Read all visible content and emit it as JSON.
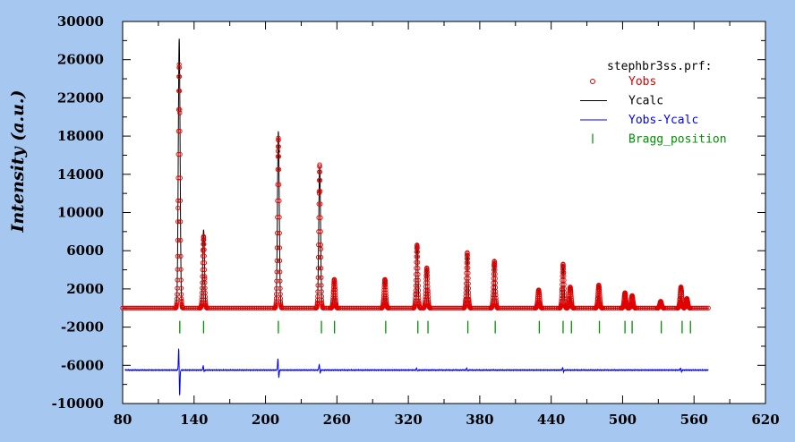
{
  "chart_data": {
    "type": "scatter",
    "ylabel": "Intensity (a.u.)",
    "xlabel": "",
    "xlim": [
      80,
      620
    ],
    "ylim": [
      -10000,
      30000
    ],
    "x_ticks": [
      "80",
      "140",
      "200",
      "260",
      "320",
      "380",
      "440",
      "500",
      "560",
      "620"
    ],
    "y_ticks": [
      "30000",
      "26000",
      "22000",
      "18000",
      "14000",
      "10000",
      "6000",
      "2000",
      "-2000",
      "-6000",
      "-10000"
    ],
    "legend": {
      "title": "stephbr3ss.prf:",
      "placement": "top-right",
      "entries": [
        {
          "label": "Yobs",
          "marker": "circle",
          "color": "#e00000"
        },
        {
          "label": "Ycalc",
          "marker": "line",
          "color": "#000000"
        },
        {
          "label": "Yobs-Ycalc",
          "marker": "line",
          "color": "#0000ff"
        },
        {
          "label": "Bragg_position",
          "marker": "tick",
          "color": "#009000"
        }
      ]
    },
    "background": 0,
    "x_range_data": [
      80,
      572
    ],
    "peaks": [
      {
        "x": 127.5,
        "y_obs": 25500,
        "y_calc": 28200
      },
      {
        "x": 148,
        "y_obs": 7500,
        "y_calc": 8200
      },
      {
        "x": 210.8,
        "y_obs": 17800,
        "y_calc": 18500
      },
      {
        "x": 245.5,
        "y_obs": 15000,
        "y_calc": 14800
      },
      {
        "x": 257.8,
        "y_obs": 3000,
        "y_calc": 3000
      },
      {
        "x": 300.3,
        "y_obs": 3000,
        "y_calc": 3000
      },
      {
        "x": 327.3,
        "y_obs": 6600,
        "y_calc": 6800
      },
      {
        "x": 335.5,
        "y_obs": 4200,
        "y_calc": 4200
      },
      {
        "x": 369.5,
        "y_obs": 5800,
        "y_calc": 5800
      },
      {
        "x": 392.3,
        "y_obs": 4900,
        "y_calc": 4900
      },
      {
        "x": 429.5,
        "y_obs": 1900,
        "y_calc": 1900
      },
      {
        "x": 450,
        "y_obs": 4600,
        "y_calc": 4600
      },
      {
        "x": 456,
        "y_obs": 2200,
        "y_calc": 2200
      },
      {
        "x": 480,
        "y_obs": 2400,
        "y_calc": 2400
      },
      {
        "x": 502,
        "y_obs": 1600,
        "y_calc": 1600
      },
      {
        "x": 508,
        "y_obs": 1300,
        "y_calc": 1300
      },
      {
        "x": 532,
        "y_obs": 700,
        "y_calc": 700
      },
      {
        "x": 549,
        "y_obs": 2200,
        "y_calc": 2400
      },
      {
        "x": 554,
        "y_obs": 1000,
        "y_calc": 1000
      }
    ],
    "bragg_positions": [
      128,
      148,
      210.8,
      247,
      258,
      301,
      328,
      336.5,
      370,
      393,
      430,
      450,
      457,
      480.5,
      502,
      508,
      532.5,
      550,
      557
    ],
    "bragg_level": -2000,
    "difference": {
      "offset": -6500,
      "spikes": [
        {
          "x": 127.5,
          "amp": 2800,
          "neg": 3200
        },
        {
          "x": 148,
          "amp": 500,
          "neg": 200
        },
        {
          "x": 210.8,
          "amp": 1400,
          "neg": 1000
        },
        {
          "x": 245.5,
          "amp": 700,
          "neg": 400
        },
        {
          "x": 327.3,
          "amp": 250,
          "neg": 150
        },
        {
          "x": 369.5,
          "amp": 250,
          "neg": 150
        },
        {
          "x": 450,
          "amp": 300,
          "neg": 200
        },
        {
          "x": 549,
          "amp": 250,
          "neg": 200
        }
      ]
    }
  }
}
